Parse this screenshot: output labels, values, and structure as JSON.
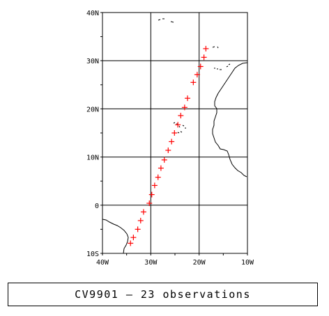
{
  "chart_data": {
    "type": "scatter",
    "title": "CV9901 — 23 observations",
    "xlim": [
      -40,
      -10
    ],
    "ylim": [
      -10,
      40
    ],
    "x_ticks": [
      -40,
      -30,
      -20,
      -10
    ],
    "x_tick_labels": [
      "40W",
      "30W",
      "20W",
      "10W"
    ],
    "y_ticks": [
      -10,
      0,
      10,
      20,
      30,
      40
    ],
    "y_tick_labels": [
      "10S",
      "0",
      "10N",
      "20N",
      "30N",
      "40N"
    ],
    "grid": true,
    "marker": "plus",
    "marker_color": "#ff0000",
    "points": [
      {
        "lon": -34.2,
        "lat": -7.9
      },
      {
        "lon": -33.6,
        "lat": -6.7
      },
      {
        "lon": -32.7,
        "lat": -5.0
      },
      {
        "lon": -32.1,
        "lat": -3.2
      },
      {
        "lon": -31.5,
        "lat": -1.4
      },
      {
        "lon": -30.3,
        "lat": 0.4
      },
      {
        "lon": -29.8,
        "lat": 2.2
      },
      {
        "lon": -29.2,
        "lat": 4.1
      },
      {
        "lon": -28.5,
        "lat": 5.8
      },
      {
        "lon": -27.9,
        "lat": 7.7
      },
      {
        "lon": -27.2,
        "lat": 9.4
      },
      {
        "lon": -26.4,
        "lat": 11.4
      },
      {
        "lon": -25.7,
        "lat": 13.2
      },
      {
        "lon": -25.1,
        "lat": 15.0
      },
      {
        "lon": -24.4,
        "lat": 16.7
      },
      {
        "lon": -23.8,
        "lat": 18.6
      },
      {
        "lon": -23.0,
        "lat": 20.3
      },
      {
        "lon": -22.4,
        "lat": 22.2
      },
      {
        "lon": -21.2,
        "lat": 25.5
      },
      {
        "lon": -20.4,
        "lat": 27.1
      },
      {
        "lon": -19.7,
        "lat": 28.8
      },
      {
        "lon": -19.0,
        "lat": 30.7
      },
      {
        "lon": -18.6,
        "lat": 32.5
      }
    ]
  },
  "caption": {
    "text": "CV9901 — 23 observations"
  }
}
